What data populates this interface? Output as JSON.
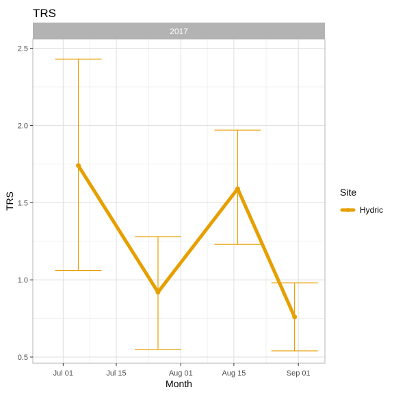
{
  "chart_data": {
    "type": "line",
    "title": "TRS",
    "facet_label": "2017",
    "xlabel": "Month",
    "ylabel": "TRS",
    "x_ticks": [
      {
        "date": "2017-07-01",
        "label": "Jul 01"
      },
      {
        "date": "2017-07-15",
        "label": "Jul 15"
      },
      {
        "date": "2017-08-01",
        "label": "Aug 01"
      },
      {
        "date": "2017-08-15",
        "label": "Aug 15"
      },
      {
        "date": "2017-09-01",
        "label": "Sep 01"
      }
    ],
    "xlim": [
      "2017-06-23",
      "2017-09-08"
    ],
    "y_ticks": [
      0.5,
      1.0,
      1.5,
      2.0,
      2.5
    ],
    "y_tick_labels": [
      "0.5",
      "1.0",
      "1.5",
      "2.0",
      "2.5"
    ],
    "ylim": [
      0.46,
      2.56
    ],
    "grid": true,
    "legend": {
      "title": "Site",
      "placement": "right"
    },
    "series": [
      {
        "name": "Hydric",
        "color": "#E69F00",
        "points": [
          {
            "x": "2017-07-05",
            "y": 1.74,
            "ymin": 1.06,
            "ymax": 2.43
          },
          {
            "x": "2017-07-26",
            "y": 0.92,
            "ymin": 0.55,
            "ymax": 1.28
          },
          {
            "x": "2017-08-16",
            "y": 1.59,
            "ymin": 1.23,
            "ymax": 1.97
          },
          {
            "x": "2017-08-31",
            "y": 0.76,
            "ymin": 0.54,
            "ymax": 0.98
          }
        ]
      }
    ]
  }
}
